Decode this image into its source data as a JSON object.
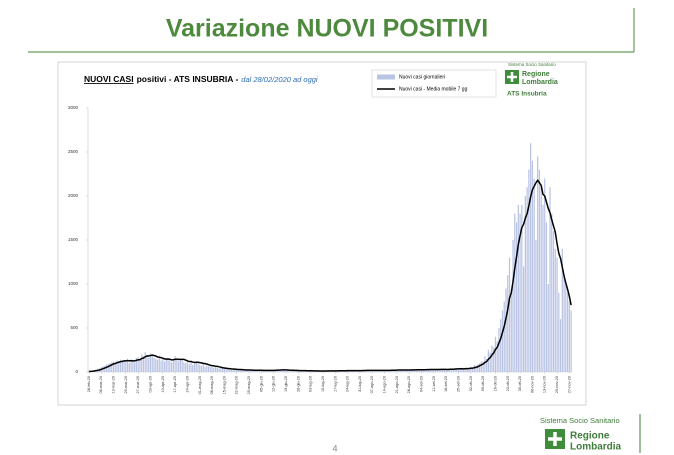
{
  "header": {
    "title": "Variazione NUOVI POSITIVI"
  },
  "chart_data": {
    "type": "combo",
    "title_parts": [
      "NUOVI CASI",
      "positivi - ATS INSUBRIA -",
      "dal 28/02/2020 ad oggi"
    ],
    "categories": [
      "28-feb-20",
      null,
      null,
      null,
      null,
      null,
      null,
      "06-mar-20",
      null,
      null,
      null,
      null,
      null,
      null,
      "13-mar-20",
      null,
      null,
      null,
      null,
      null,
      null,
      "20-mar-20",
      null,
      null,
      null,
      null,
      null,
      null,
      "27-mar-20",
      null,
      null,
      null,
      null,
      null,
      null,
      "03-apr-20",
      null,
      null,
      null,
      null,
      null,
      null,
      "10-apr-20",
      null,
      null,
      null,
      null,
      null,
      null,
      "17-apr-20",
      null,
      null,
      null,
      null,
      null,
      null,
      "24-apr-20",
      null,
      null,
      null,
      null,
      null,
      null,
      "01-mag-20",
      null,
      null,
      null,
      null,
      null,
      null,
      "08-mag-20",
      null,
      null,
      null,
      null,
      null,
      null,
      "15-mag-20",
      null,
      null,
      null,
      null,
      null,
      null,
      "22-mag-20",
      null,
      null,
      null,
      null,
      null,
      null,
      "29-mag-20",
      null,
      null,
      null,
      null,
      null,
      null,
      "05-giu-20",
      null,
      null,
      null,
      null,
      null,
      null,
      "12-giu-20",
      null,
      null,
      null,
      null,
      null,
      null,
      "19-giu-20",
      null,
      null,
      null,
      null,
      null,
      null,
      "26-giu-20",
      null,
      null,
      null,
      null,
      null,
      null,
      "03-lug-20",
      null,
      null,
      null,
      null,
      null,
      null,
      "10-lug-20",
      null,
      null,
      null,
      null,
      null,
      null,
      "17-lug-20",
      null,
      null,
      null,
      null,
      null,
      null,
      "24-lug-20",
      null,
      null,
      null,
      null,
      null,
      null,
      "31-lug-20",
      null,
      null,
      null,
      null,
      null,
      null,
      "07-ago-20",
      null,
      null,
      null,
      null,
      null,
      null,
      "14-ago-20",
      null,
      null,
      null,
      null,
      null,
      null,
      "21-ago-20",
      null,
      null,
      null,
      null,
      null,
      null,
      "28-ago-20",
      null,
      null,
      null,
      null,
      null,
      null,
      "04-set-20",
      null,
      null,
      null,
      null,
      null,
      null,
      "11-set-20",
      null,
      null,
      null,
      null,
      null,
      null,
      "18-set-20",
      null,
      null,
      null,
      null,
      null,
      null,
      "25-set-20",
      null,
      null,
      null,
      null,
      null,
      null,
      "02-ott-20",
      null,
      null,
      null,
      null,
      null,
      null,
      "09-ott-20",
      null,
      null,
      null,
      null,
      null,
      null,
      "16-ott-20",
      null,
      null,
      null,
      null,
      null,
      null,
      "23-ott-20",
      null,
      null,
      null,
      null,
      null,
      null,
      "30-ott-20",
      null,
      null,
      null,
      null,
      null,
      null,
      "06-nov-20",
      null,
      null,
      null,
      null,
      null,
      null,
      "13-nov-20",
      null,
      null,
      null,
      null,
      null,
      null,
      "20-nov-20",
      null,
      null,
      null,
      null,
      null,
      null,
      "27-nov-20",
      null
    ],
    "series": [
      {
        "name": "Nuovi casi giornalieri",
        "type": "bar",
        "color": "#b9c3e3",
        "values": [
          5,
          8,
          12,
          20,
          28,
          35,
          45,
          55,
          65,
          70,
          85,
          90,
          100,
          110,
          120,
          95,
          130,
          105,
          140,
          115,
          125,
          120,
          150,
          100,
          140,
          130,
          110,
          160,
          170,
          150,
          200,
          180,
          225,
          190,
          160,
          210,
          180,
          160,
          150,
          140,
          170,
          130,
          150,
          120,
          140,
          160,
          130,
          110,
          150,
          180,
          140,
          120,
          150,
          130,
          110,
          100,
          110,
          90,
          130,
          80,
          100,
          120,
          90,
          80,
          70,
          90,
          60,
          75,
          65,
          60,
          55,
          50,
          60,
          45,
          40,
          50,
          35,
          40,
          30,
          35,
          30,
          25,
          35,
          30,
          25,
          20,
          30,
          22,
          18,
          25,
          20,
          22,
          18,
          25,
          15,
          20,
          24,
          18,
          20,
          15,
          18,
          22,
          16,
          14,
          20,
          18,
          25,
          30,
          22,
          20,
          28,
          24,
          22,
          18,
          20,
          16,
          15,
          19,
          17,
          15,
          12,
          18,
          14,
          10,
          16,
          13,
          12,
          15,
          10,
          14,
          11,
          9,
          13,
          14,
          10,
          12,
          16,
          11,
          13,
          15,
          12,
          14,
          18,
          11,
          15,
          13,
          16,
          15,
          18,
          12,
          20,
          16,
          14,
          17,
          18,
          14,
          20,
          16,
          22,
          19,
          15,
          16,
          20,
          14,
          18,
          22,
          17,
          19,
          20,
          18,
          24,
          15,
          21,
          25,
          19,
          22,
          26,
          18,
          24,
          20,
          28,
          23,
          25,
          22,
          30,
          20,
          27,
          24,
          28,
          30,
          26,
          22,
          32,
          28,
          25,
          34,
          28,
          32,
          25,
          35,
          30,
          27,
          33,
          30,
          25,
          40,
          35,
          30,
          45,
          40,
          40,
          35,
          50,
          30,
          45,
          40,
          50,
          60,
          50,
          80,
          70,
          90,
          100,
          120,
          120,
          180,
          150,
          250,
          220,
          300,
          280,
          400,
          350,
          500,
          600,
          700,
          800,
          950,
          1100,
          1300,
          900,
          1500,
          1800,
          1700,
          1900,
          1800,
          1900,
          1200,
          2000,
          2100,
          2300,
          2600,
          2400,
          2200,
          1500,
          2450,
          2300,
          2100,
          1900,
          2200,
          1700,
          1000,
          2100,
          1800,
          1600,
          1400,
          1300,
          900,
          600,
          1400,
          1100,
          1000,
          900,
          800,
          700
        ]
      },
      {
        "name": "Nuovi casi - Media mobile 7 gg",
        "type": "line",
        "color": "#000000",
        "values": [
          5,
          7,
          8,
          11,
          15,
          18,
          22,
          29,
          37,
          45,
          53,
          62,
          72,
          82,
          92,
          97,
          106,
          111,
          118,
          121,
          126,
          126,
          130,
          126,
          129,
          127,
          127,
          132,
          139,
          139,
          153,
          159,
          172,
          183,
          182,
          188,
          192,
          187,
          182,
          170,
          169,
          163,
          157,
          149,
          146,
          147,
          145,
          137,
          140,
          144,
          147,
          144,
          143,
          143,
          143,
          136,
          126,
          119,
          120,
          113,
          109,
          110,
          111,
          107,
          104,
          98,
          95,
          91,
          83,
          77,
          73,
          70,
          66,
          64,
          59,
          55,
          48,
          46,
          43,
          40,
          38,
          35,
          34,
          32,
          30,
          28,
          28,
          27,
          25,
          24,
          23,
          22,
          22,
          21,
          20,
          20,
          20,
          20,
          20,
          19,
          19,
          19,
          18,
          18,
          18,
          18,
          19,
          21,
          21,
          22,
          24,
          24,
          24,
          23,
          21,
          20,
          20,
          18,
          18,
          17,
          16,
          16,
          15,
          15,
          14,
          14,
          14,
          14,
          13,
          13,
          13,
          12,
          12,
          12,
          12,
          12,
          13,
          13,
          13,
          13,
          13,
          13,
          14,
          14,
          14,
          14,
          14,
          15,
          15,
          15,
          16,
          16,
          15,
          16,
          16,
          16,
          17,
          17,
          18,
          18,
          18,
          18,
          19,
          18,
          18,
          18,
          18,
          18,
          18,
          18,
          19,
          19,
          20,
          20,
          20,
          21,
          22,
          22,
          22,
          22,
          23,
          23,
          23,
          23,
          24,
          24,
          24,
          25,
          25,
          26,
          26,
          26,
          27,
          27,
          28,
          28,
          28,
          29,
          29,
          29,
          30,
          30,
          30,
          30,
          29,
          31,
          31,
          31,
          33,
          35,
          36,
          37,
          37,
          36,
          38,
          38,
          39,
          42,
          44,
          48,
          54,
          60,
          70,
          81,
          90,
          109,
          119,
          145,
          164,
          193,
          216,
          256,
          280,
          330,
          380,
          450,
          520,
          610,
          710,
          840,
          900,
          1030,
          1180,
          1310,
          1450,
          1550,
          1640,
          1680,
          1750,
          1800,
          1890,
          1990,
          2070,
          2110,
          2150,
          2180,
          2150,
          2120,
          2020,
          2000,
          1930,
          1860,
          1810,
          1730,
          1660,
          1590,
          1460,
          1350,
          1290,
          1190,
          1090,
          1010,
          940,
          860,
          760
        ]
      }
    ],
    "ylim": [
      0,
      3000
    ],
    "yticks": [
      0,
      500,
      1000,
      1500,
      2000,
      2500,
      3000
    ],
    "legend": "top-right"
  },
  "chart_logo": {
    "system": "Sistema Socio Sanitario",
    "region_1": "Regione",
    "region_2": "Lombardia",
    "agency": "ATS Insubria"
  },
  "footer_logo": {
    "system": "Sistema Socio Sanitario",
    "region_1": "Regione",
    "region_2": "Lombardia"
  },
  "page_number": "4"
}
